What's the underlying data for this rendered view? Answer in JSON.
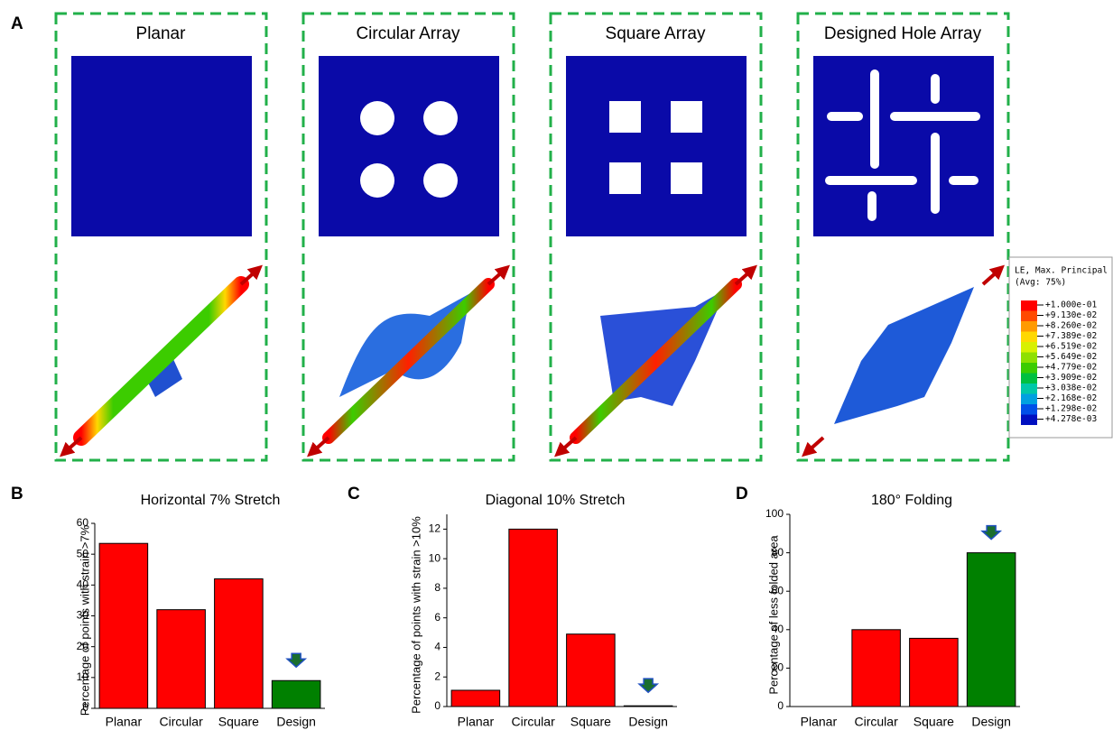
{
  "panel_a": {
    "label": "A",
    "titles": [
      "Planar",
      "Circular Array",
      "Square Array",
      "Designed Hole Array"
    ]
  },
  "legend": {
    "title": "LE, Max. Principal",
    "subtitle": "(Avg: 75%)",
    "labels": [
      "+1.000e-01",
      "+9.130e-02",
      "+8.260e-02",
      "+7.389e-02",
      "+6.519e-02",
      "+5.649e-02",
      "+4.779e-02",
      "+3.909e-02",
      "+3.038e-02",
      "+2.168e-02",
      "+1.298e-02",
      "+4.278e-03"
    ],
    "colors": [
      "#ff0000",
      "#ff4a00",
      "#ff9a00",
      "#ffd800",
      "#d8f000",
      "#8ee000",
      "#3ccc00",
      "#00c040",
      "#00c8a8",
      "#00a0e0",
      "#0050e8",
      "#0010c0"
    ]
  },
  "chart_data": [
    {
      "type": "bar",
      "panel": "B",
      "title": "Horizontal 7% Stretch",
      "y_label": "Percentage of points with strain >7%",
      "categories": [
        "Planar",
        "Circular",
        "Square",
        "Design"
      ],
      "values": [
        53.5,
        32,
        42,
        9
      ],
      "colors": [
        "#ff0000",
        "#ff0000",
        "#ff0000",
        "#008000"
      ],
      "ylim": [
        0,
        60
      ],
      "yticks": [
        0,
        10,
        20,
        30,
        40,
        50,
        60
      ]
    },
    {
      "type": "bar",
      "panel": "C",
      "title": "Diagonal 10% Stretch",
      "y_label": "Percentage of points with strain >10%",
      "categories": [
        "Planar",
        "Circular",
        "Square",
        "Design"
      ],
      "values": [
        1.1,
        12,
        4.9,
        0.05
      ],
      "colors": [
        "#ff0000",
        "#ff0000",
        "#ff0000",
        "#008000"
      ],
      "ylim": [
        0,
        13
      ],
      "yticks": [
        0,
        2,
        4,
        6,
        8,
        10,
        12
      ]
    },
    {
      "type": "bar",
      "panel": "D",
      "title": "180° Folding",
      "y_label": "Percentage of less folded area",
      "categories": [
        "Planar",
        "Circular",
        "Square",
        "Design"
      ],
      "values": [
        0,
        40,
        35.5,
        80
      ],
      "colors": [
        "#ff0000",
        "#ff0000",
        "#ff0000",
        "#008000"
      ],
      "ylim": [
        0,
        100
      ],
      "yticks": [
        0,
        20,
        40,
        60,
        80,
        100
      ]
    }
  ]
}
